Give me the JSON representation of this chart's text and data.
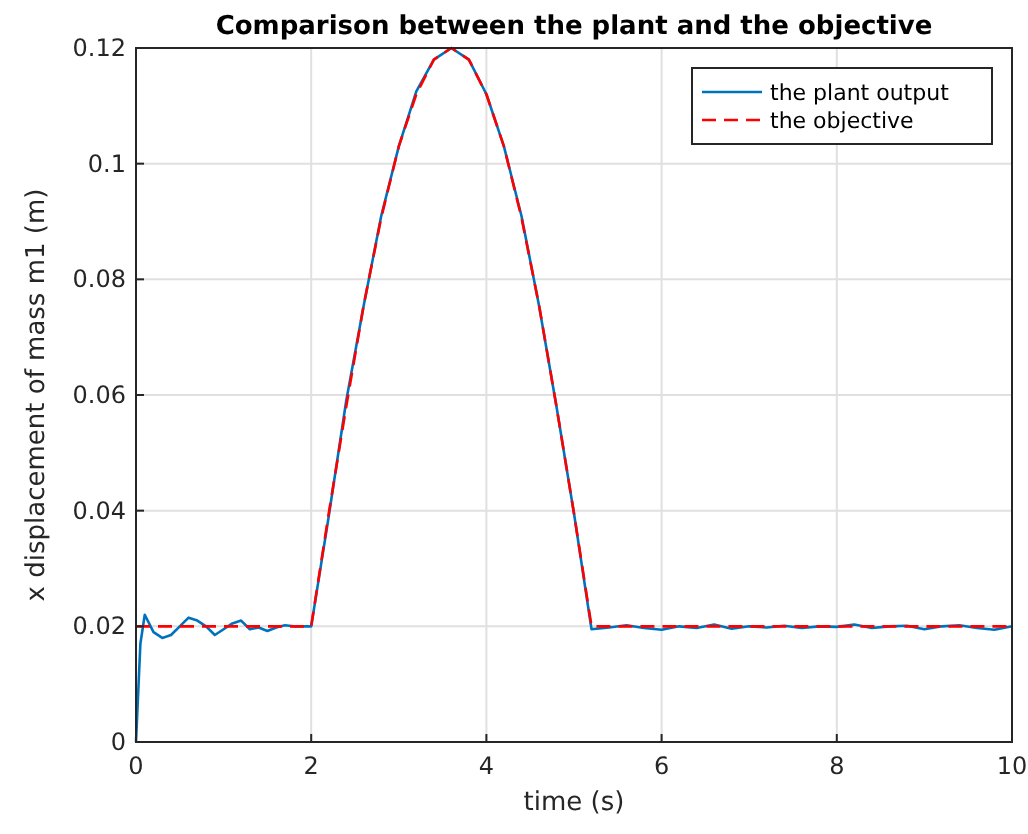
{
  "chart_data": {
    "type": "line",
    "title": "Comparison between the plant and the objective",
    "xlabel": "time (s)",
    "ylabel": "x displacement of mass m1 (m)",
    "xlim": [
      0,
      10
    ],
    "ylim": [
      0,
      0.12
    ],
    "xticks": [
      0,
      2,
      4,
      6,
      8,
      10
    ],
    "yticks": [
      0,
      0.02,
      0.04,
      0.06,
      0.08,
      0.1,
      0.12
    ],
    "grid": true,
    "legend": "top right",
    "series": [
      {
        "name": "the plant output",
        "color": "#0072bd",
        "line_style": "solid",
        "x": [
          0,
          0.05,
          0.1,
          0.2,
          0.3,
          0.4,
          0.5,
          0.6,
          0.7,
          0.8,
          0.9,
          1.0,
          1.1,
          1.2,
          1.3,
          1.4,
          1.5,
          1.6,
          1.7,
          1.8,
          1.9,
          2.0,
          2.2,
          2.4,
          2.6,
          2.8,
          3.0,
          3.2,
          3.4,
          3.6,
          3.8,
          4.0,
          4.2,
          4.4,
          4.6,
          4.8,
          5.0,
          5.2,
          5.4,
          5.6,
          5.8,
          6.0,
          6.2,
          6.4,
          6.6,
          6.8,
          7.0,
          7.2,
          7.4,
          7.6,
          7.8,
          8.0,
          8.2,
          8.4,
          8.6,
          8.8,
          9.0,
          9.2,
          9.4,
          9.6,
          9.8,
          10
        ],
        "values": [
          0,
          0.017,
          0.022,
          0.019,
          0.018,
          0.0185,
          0.02,
          0.0215,
          0.021,
          0.02,
          0.0185,
          0.0195,
          0.0205,
          0.021,
          0.0195,
          0.0198,
          0.0192,
          0.0198,
          0.0202,
          0.02,
          0.02,
          0.02,
          0.039,
          0.059,
          0.0755,
          0.091,
          0.103,
          0.1125,
          0.118,
          0.12,
          0.118,
          0.112,
          0.103,
          0.091,
          0.0755,
          0.058,
          0.0395,
          0.0195,
          0.0198,
          0.0202,
          0.0197,
          0.0194,
          0.02,
          0.0197,
          0.0203,
          0.0196,
          0.02,
          0.0198,
          0.0201,
          0.0197,
          0.02,
          0.0199,
          0.0203,
          0.0197,
          0.02,
          0.0201,
          0.0195,
          0.02,
          0.0202,
          0.0197,
          0.0194,
          0.02
        ]
      },
      {
        "name": "the objective",
        "color": "#ff0000",
        "line_style": "dashed",
        "x": [
          0,
          2.0,
          2.2,
          2.4,
          2.6,
          2.8,
          3.0,
          3.2,
          3.4,
          3.6,
          3.8,
          4.0,
          4.2,
          4.4,
          4.6,
          4.8,
          5.0,
          5.2,
          10
        ],
        "values": [
          0.02,
          0.02,
          0.0395,
          0.058,
          0.0756,
          0.0907,
          0.103,
          0.112,
          0.118,
          0.12,
          0.118,
          0.112,
          0.103,
          0.0907,
          0.0756,
          0.058,
          0.0395,
          0.02,
          0.02
        ]
      }
    ]
  }
}
